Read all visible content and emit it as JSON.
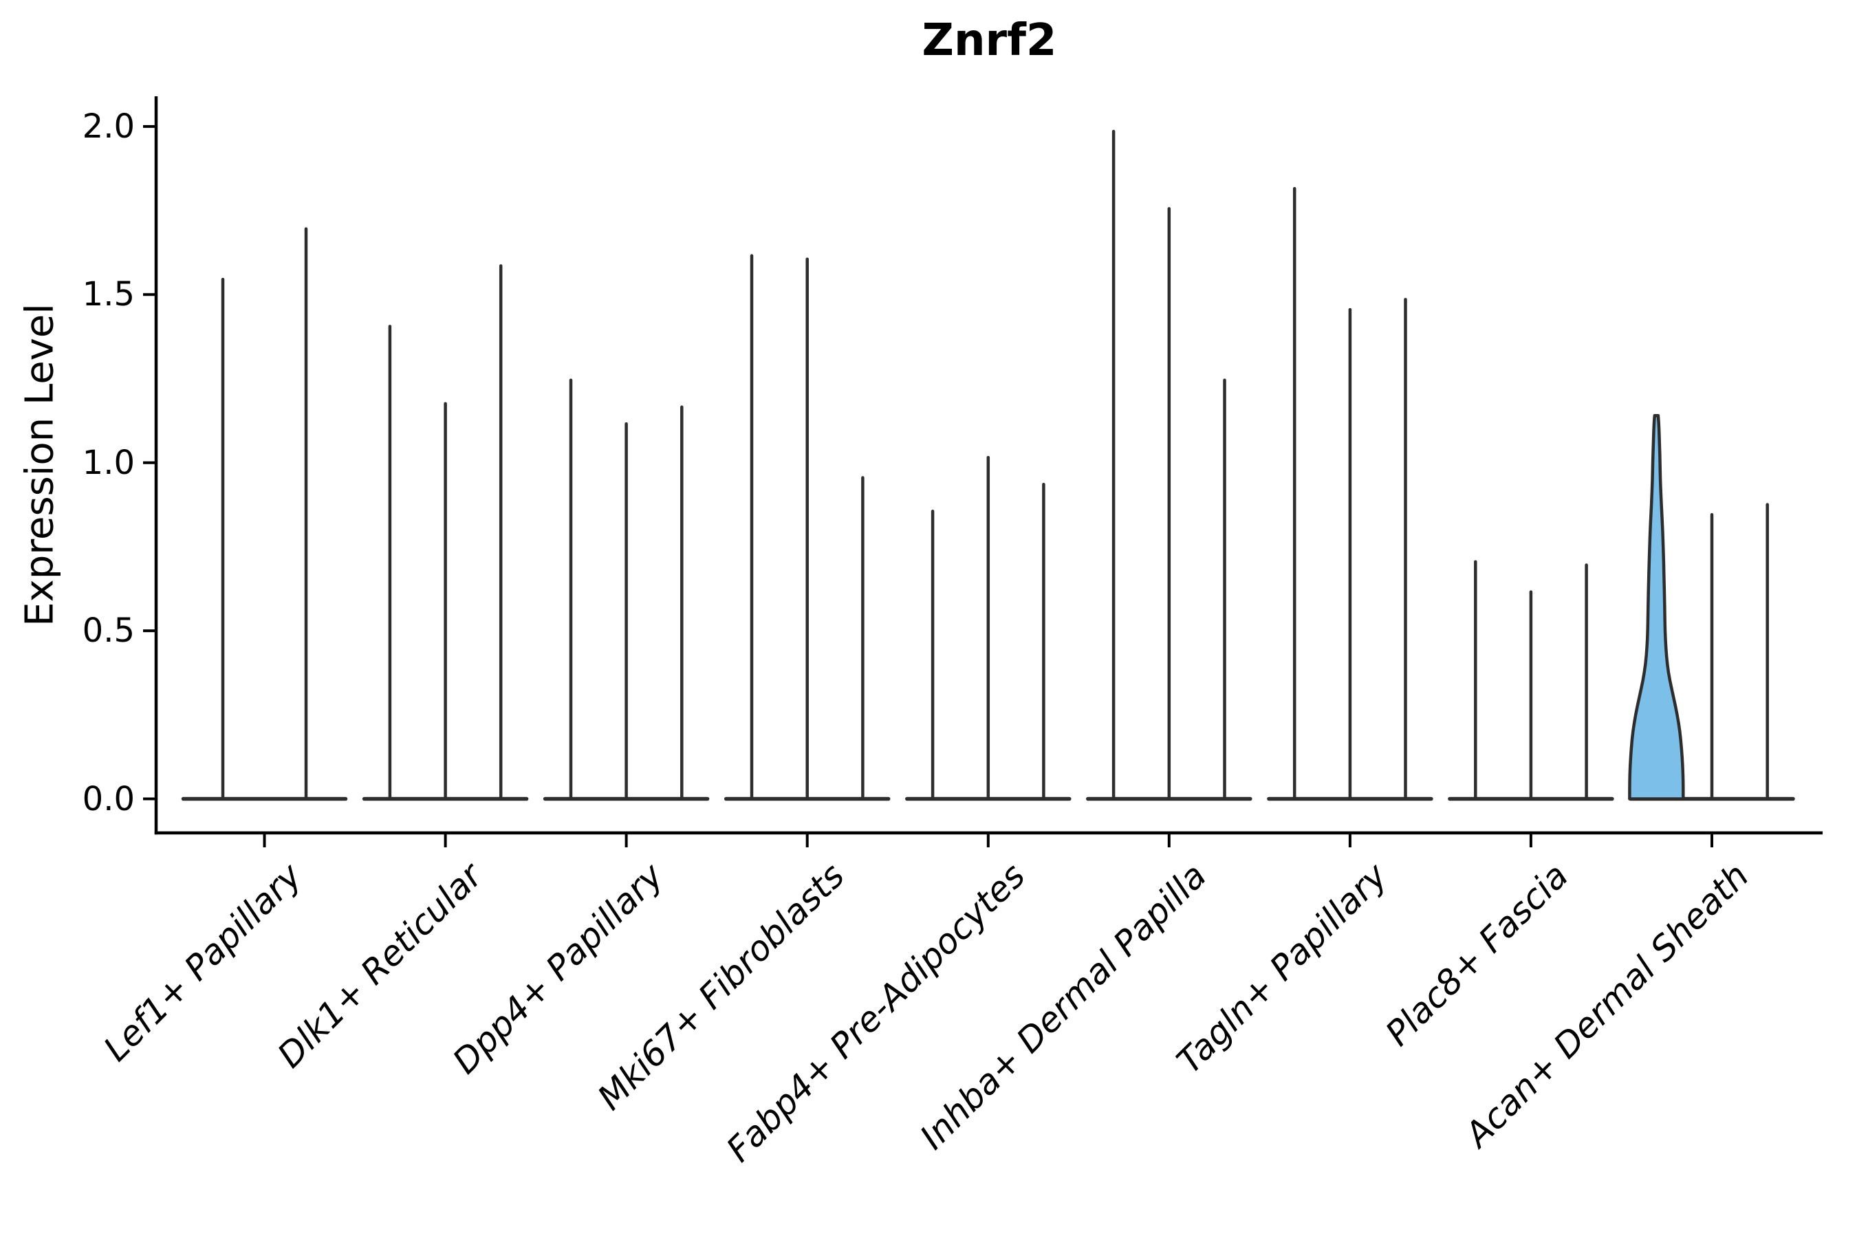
{
  "title": "Znrf2",
  "y_axis": {
    "label": "Expression Level",
    "tick_labels": [
      "0.0",
      "0.5",
      "1.0",
      "1.5",
      "2.0"
    ],
    "tick_values": [
      0,
      0.5,
      1.0,
      1.5,
      2.0
    ]
  },
  "colors": {
    "violin_edge": "#2d2d2d",
    "spike": "#2d2d2d",
    "highlight_fill": "#7cc0ea",
    "axis": "#000000",
    "background": "#ffffff"
  },
  "chart_data": {
    "type": "violin",
    "title": "Znrf2",
    "xlabel": "",
    "ylabel": "Expression Level",
    "ylim": [
      -0.1,
      2.09
    ],
    "yticks": [
      0,
      0.5,
      1.0,
      1.5,
      2.0
    ],
    "grid": false,
    "legend": "none",
    "description": "Violin plot of Znrf2 expression per fibroblast cell type; each category holds 2-3 needle-thin violins (max expression spikes rising from a flat base at 0). One violin in Acan+ Dermal Sheath is a wide blue-filled violin.",
    "categories": [
      "Lef1+ Papillary",
      "Dlk1+ Reticular",
      "Dpp4+ Papillary",
      "Mki67+ Fibroblasts",
      "Fabp4+ Pre-Adipocytes",
      "Inhba+ Dermal Papilla",
      "Tagln+ Papillary",
      "Plac8+ Fascia",
      "Acan+ Dermal Sheath"
    ],
    "groups": [
      {
        "category": "Lef1+ Papillary",
        "violins": [
          {
            "max": 1.55
          },
          {
            "max": 1.7
          }
        ]
      },
      {
        "category": "Dlk1+ Reticular",
        "violins": [
          {
            "max": 1.41
          },
          {
            "max": 1.18
          },
          {
            "max": 1.59
          }
        ]
      },
      {
        "category": "Dpp4+ Papillary",
        "violins": [
          {
            "max": 1.25
          },
          {
            "max": 1.12
          },
          {
            "max": 1.17
          }
        ]
      },
      {
        "category": "Mki67+ Fibroblasts",
        "violins": [
          {
            "max": 1.62
          },
          {
            "max": 1.61
          },
          {
            "max": 0.96
          }
        ]
      },
      {
        "category": "Fabp4+ Pre-Adipocytes",
        "violins": [
          {
            "max": 0.86
          },
          {
            "max": 1.02
          },
          {
            "max": 0.94
          }
        ]
      },
      {
        "category": "Inhba+ Dermal Papilla",
        "violins": [
          {
            "max": 1.99
          },
          {
            "max": 1.76
          },
          {
            "max": 1.25
          }
        ]
      },
      {
        "category": "Tagln+ Papillary",
        "violins": [
          {
            "max": 1.82
          },
          {
            "max": 1.46
          },
          {
            "max": 1.49
          }
        ]
      },
      {
        "category": "Plac8+ Fascia",
        "violins": [
          {
            "max": 0.71
          },
          {
            "max": 0.62
          },
          {
            "max": 0.7
          }
        ]
      },
      {
        "category": "Acan+ Dermal Sheath",
        "violins": [
          {
            "max": 1.14,
            "highlighted": true,
            "width_profile": [
              [
                0.0,
                0.99
              ],
              [
                0.05,
                0.99
              ],
              [
                0.1,
                0.97
              ],
              [
                0.15,
                0.93
              ],
              [
                0.2,
                0.87
              ],
              [
                0.25,
                0.77
              ],
              [
                0.3,
                0.64
              ],
              [
                0.35,
                0.5
              ],
              [
                0.4,
                0.4
              ],
              [
                0.45,
                0.35
              ],
              [
                0.5,
                0.32
              ],
              [
                0.55,
                0.31
              ],
              [
                0.6,
                0.3
              ],
              [
                0.65,
                0.285
              ],
              [
                0.7,
                0.27
              ],
              [
                0.75,
                0.25
              ],
              [
                0.8,
                0.23
              ],
              [
                0.85,
                0.2
              ],
              [
                0.9,
                0.17
              ],
              [
                0.95,
                0.145
              ],
              [
                1.0,
                0.135
              ],
              [
                1.05,
                0.115
              ],
              [
                1.09,
                0.1
              ],
              [
                1.12,
                0.085
              ],
              [
                1.14,
                0.065
              ]
            ]
          },
          {
            "max": 0.85
          },
          {
            "max": 0.88
          }
        ]
      }
    ]
  }
}
